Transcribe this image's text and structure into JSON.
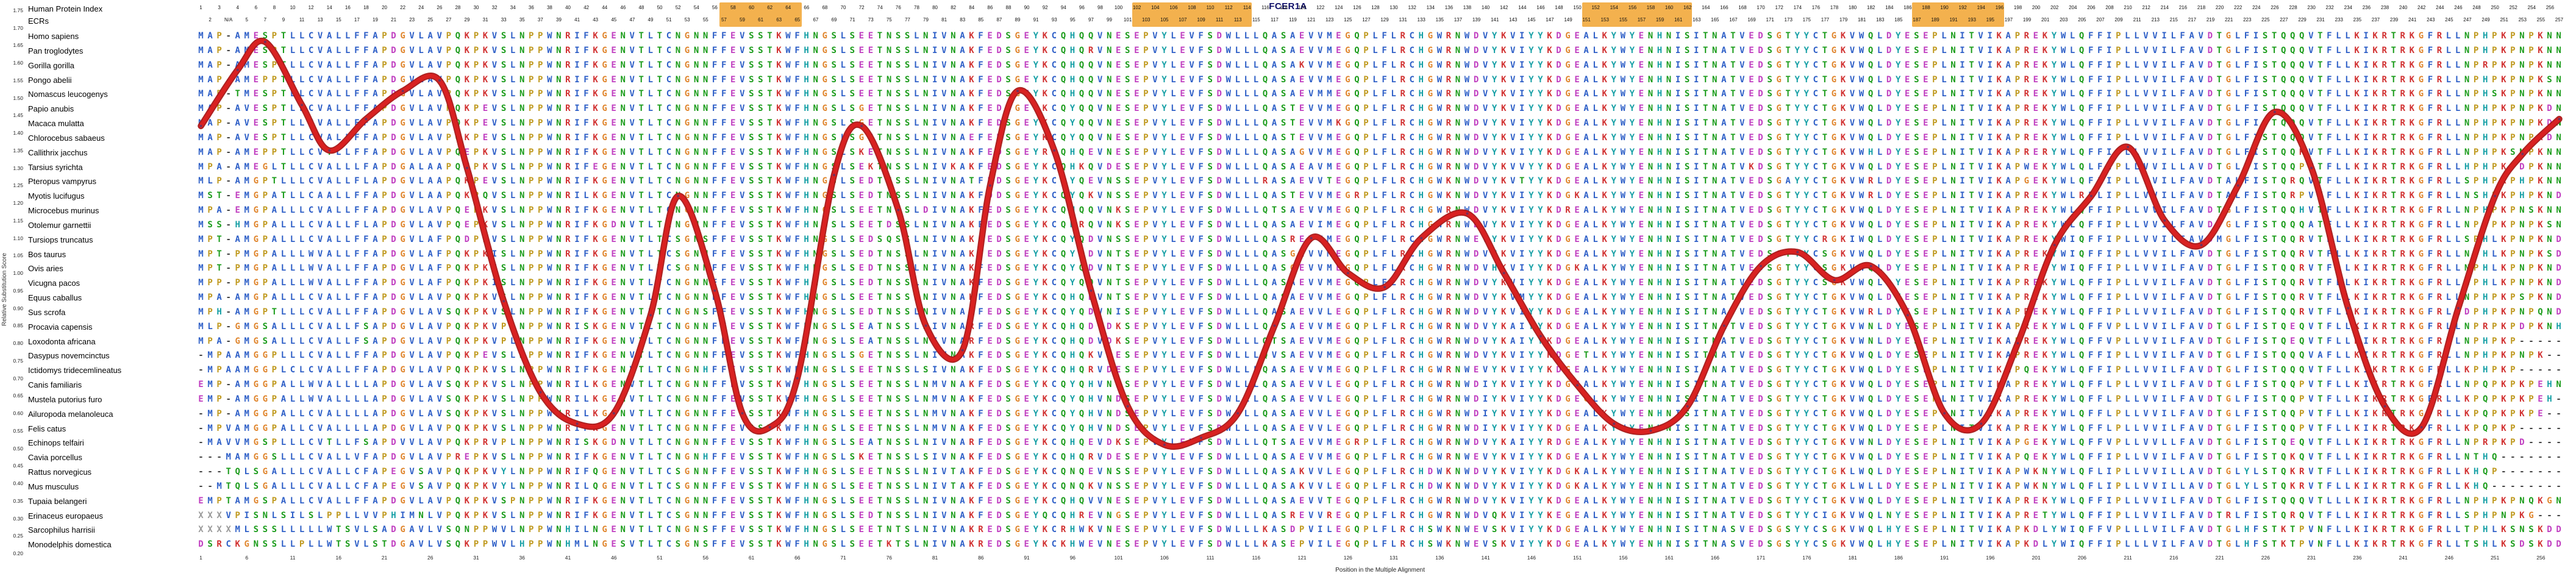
{
  "title": "FCER1A",
  "header": {
    "row1_label": "Human Protein Index",
    "row2_label": "ECRs",
    "row1_numbers": [
      1,
      3,
      4,
      6,
      8,
      10,
      12,
      14,
      16,
      18,
      20,
      22,
      24,
      26,
      28,
      30,
      32,
      34,
      36,
      38,
      40,
      42,
      44,
      46,
      48,
      50,
      52,
      54,
      56,
      58,
      60,
      62,
      64,
      66,
      68,
      70,
      72,
      74,
      76,
      78,
      80,
      82,
      84,
      86,
      88,
      90,
      92,
      94,
      96,
      98,
      100,
      102,
      104,
      106,
      108,
      110,
      112,
      114,
      116,
      118,
      120,
      122,
      124,
      126,
      128,
      130,
      132,
      134,
      136,
      138,
      140,
      142,
      144,
      146,
      148,
      150,
      152,
      154,
      156,
      158,
      160,
      162,
      164,
      166,
      168,
      170,
      172,
      174,
      176,
      178,
      180,
      182,
      184,
      186,
      188,
      190,
      192,
      194,
      196,
      198,
      200,
      202,
      204,
      206,
      208,
      210,
      212,
      214,
      216,
      218,
      220,
      222,
      224,
      226,
      228,
      230,
      232,
      234,
      236,
      238,
      240,
      242,
      244,
      246,
      248,
      250,
      252,
      254,
      256
    ],
    "row2_numbers": [
      2,
      "N/A",
      5,
      7,
      9,
      11,
      13,
      15,
      17,
      19,
      21,
      23,
      25,
      27,
      29,
      31,
      33,
      35,
      37,
      39,
      41,
      43,
      45,
      47,
      49,
      51,
      53,
      55,
      57,
      59,
      61,
      63,
      65,
      67,
      69,
      71,
      73,
      75,
      77,
      79,
      81,
      83,
      85,
      87,
      89,
      91,
      93,
      95,
      97,
      99,
      101,
      103,
      105,
      107,
      109,
      111,
      113,
      115,
      117,
      119,
      121,
      123,
      125,
      127,
      129,
      131,
      133,
      135,
      137,
      139,
      141,
      143,
      145,
      147,
      149,
      151,
      153,
      155,
      157,
      159,
      161,
      163,
      165,
      167,
      169,
      171,
      173,
      175,
      177,
      179,
      181,
      183,
      185,
      187,
      189,
      191,
      193,
      195,
      197,
      199,
      201,
      203,
      205,
      207,
      209,
      211,
      213,
      215,
      217,
      219,
      221,
      223,
      225,
      227,
      229,
      231,
      233,
      235,
      237,
      239,
      241,
      243,
      245,
      247,
      249,
      251,
      253,
      255,
      257
    ],
    "ecr_regions": [
      [
        58,
        66
      ],
      [
        103,
        115
      ],
      [
        152,
        163
      ],
      [
        188,
        197
      ]
    ],
    "ecr_highlight_color": "#f2a93b"
  },
  "y_axis": {
    "label": "Relative Substitution Score",
    "tick_labels": [
      "1.75",
      "1.70",
      "1.65",
      "1.60",
      "1.55",
      "1.50",
      "1.45",
      "1.40",
      "1.35",
      "1.30",
      "1.25",
      "1.20",
      "1.15",
      "1.10",
      "1.05",
      "1.00",
      "0.95",
      "0.90",
      "0.85",
      "0.80",
      "0.75",
      "0.70",
      "0.65",
      "0.60",
      "0.55",
      "0.50",
      "0.45",
      "0.40",
      "0.35",
      "0.30",
      "0.25",
      "0.20"
    ]
  },
  "x_axis": {
    "label": "Position in the Multiple Alignment",
    "tick_values": [
      1,
      6,
      11,
      16,
      21,
      26,
      31,
      36,
      41,
      46,
      51,
      56,
      61,
      66,
      71,
      76,
      81,
      86,
      91,
      96,
      101,
      106,
      111,
      116,
      121,
      126,
      131,
      136,
      141,
      146,
      151,
      156,
      161,
      166,
      171,
      176,
      181,
      186,
      191,
      196,
      201,
      206,
      211,
      216,
      221,
      226,
      231,
      236,
      241,
      246,
      251,
      256
    ]
  },
  "residue_colors": {
    "groups": [
      {
        "residues": "AVLIMFWC",
        "color": "#2e5fc7"
      },
      {
        "residues": "KR",
        "color": "#d13030"
      },
      {
        "residues": "DE",
        "color": "#c03ec0"
      },
      {
        "residues": "NQST",
        "color": "#1b9c1b"
      },
      {
        "residues": "G",
        "color": "#e0862e"
      },
      {
        "residues": "P",
        "color": "#c09a20"
      },
      {
        "residues": "HY",
        "color": "#17a0a6"
      },
      {
        "residues": "X",
        "color": "#999999"
      },
      {
        "residues": "-",
        "color": "#444444"
      }
    ]
  },
  "alignment": {
    "column_count": 258,
    "species": [
      {
        "name": "Homo sapiens",
        "seq": "MAP-AMESPTLLCVALLFFAPDGVLAVPQKPKVSLNPPWNRIFKGENVTLTCNGNNFFEVSSTKWFHNGSLSEETNSSLNIVNAKFEDSGEYKCQHQQVNESEPVYLEVFSDWLLLQASAEVVMEGQPLFLRCHGWRNWDVYKVIYYKDGEALKYWYENHNISITNATVEDSGTYYCTGKVWQLDYESEPLNITVIKAPREKYWLQFFIPLLVVILFAVDTGLFISTQQQVTFLLKIKRTRKGFRLLNPHPKPNPKNN"
      },
      {
        "name": "Pan troglodytes",
        "seq": "MAP-AMESPTLLCVALLFFAPDGVLAVPQKPKVSLNPPWNRIFKGENVTLTCNGNNFFEVSSTKWFHNGSLSEETNSSLNIVNAKFEDSGEYKCQHQRVNESEPVYLEVFSDWLLLQASAEVVMEGQPLFLRCHGWRNWDVYKVIYYKDGEALKYWYENHNISITNATVEDSGTYYCTGKVWQLDYESEPLNITVIKAPREKYWLQFFIPLLVVILFAVDTGLFISTQQQVTFLLKIKRTRKGFRLLNPHPKPNPKNN"
      },
      {
        "name": "Gorilla gorilla",
        "seq": "MAP-AMESPTLLCVALLFFAPDGVLAVPQKPKVSLNPPWNRIFKGENVTLTCNGNNFFEVSSTKWFHNGSLSEETNSSLNIVNAKFEDSGEYKCQHQQVNESEPVYLEVFSDWLLLQASAKVVMEGQPLFLRCHGWRNWDVYKVIYYKDGEALKYWYENHNISITNATVEDSGTYYCTGKVWQLDYESEPLNITVIKAPREKYWLQFFIPLLVVILFAVDTGLFISTQQQVTFLLKIKRTRKGFRLLNPRPKPNPKNN"
      },
      {
        "name": "Pongo abelii",
        "seq": "MAP-AMEPPTLLCVALLFFAPDGVLAVPQKPKVSLNPPWNRIFKGENVTLTCNGNNFFEVSSTKWFHNGSLSEETNSSLNIVNAKFEDSGEYKCQHQQVNESEPVYLEVFSDWLLLQASAEVVMEGQPLFLRCHGWRNWDVYKVIYYKDGEALKYWYENHNISITNATVEDSGTYYCTGKVWQLDYESEPLNITVIKAPREKYWLQFFIPLLVVILFAVDTGLFISTQQQVTFLLKIKRTRKGFRLLNPHPKPNPKSN"
      },
      {
        "name": "Nomascus leucogenys",
        "seq": "MAP-TMESPTLLCVALLFFAPDGVLAVPQKPKVSLNPPWNRIFKGENVTLTCNGNNFFEVSSTKWFHNGSLSEETNSSLNIVNAKFEDSGEYKCQHQQVNESEPVYLEVFSDWLLLQASAEVMMEGQPLFLRCHGWRNWDVYKVIYYKDGEALKYWYENHNISITNATVEDSGTYYCTGKVWQLDYESEPLNITVIKAPREKYWLQFFIPLLVVILFAVDTGLFISTQQQVTFLLKIKRTRKGFRLLNPHSKPNPKNN"
      },
      {
        "name": "Papio anubis",
        "seq": "MAP-AVESPTLLCVALLFFAPDGVLAVPQKPEVSLNPPWNRIFKGENVTLTCNGNNFFEVSSTKWFHNGSLSGETNSSLNIVNAKFEDSGEYKCQYQQVNESEPVYLEVFSDWLLLQASTEVVMEGQPLFLRCHGWRNWDVYKVIYYKDGEALKYWYENHNISITNATVEDSGTYYCTGKVWQLDYESEPLNITVIKAPREKYWLQFFIPLLVVILFAVDTGLFISTQQQVTFLLKIKRTRKGFRLLNPHPKPNPKDN"
      },
      {
        "name": "Macaca mulatta",
        "seq": "MAP-AVESPTLLCVALLFFAPDGVLAVPQKPEVSLNPPWNRIFKGENVTLTCNGNNFFEVSSTKWFHNGSLSGETNSSLNIVNAKFEDSGEYKCQYQQVNESEPVYLEVFSDWLLLQASTEVVMKGQPLFLRCHGWRNWDVYKVIYYKDGEALKYWYENHNISITNATVEDSGTYYCTGKVWQLDYESEPLNITVIKAPREKYWLQFFIPLLVVILFAVDTGLFISTQQQVTFLLKIKRTRKGFRLLNPHPKPNPKDN"
      },
      {
        "name": "Chlorocebus sabaeus",
        "seq": "MAP-AVESPTLLCVALLFFAPDGVLAVPQKPEVSLNPPWNRIFKGENVTLTCNGNNFFEVSSTKWFHNGSLSGETNSSLNIVNAEFEDSGEYKCQYQQVNESEPVYLEVFSDWLLLQASTEVVMEGQPLFLRCHGWRNWDVYKVIYYKDGEALKYWYENHNISITNATVEDSGTYYCTGKVWQLDYESEPLNITVIKAPREKYWLQFFIPLLVVILFAVDTGLFISTQQQVTFLLKIKRTRKGFRLLNPHPKPNPKDN"
      },
      {
        "name": "Callithrix jacchus",
        "seq": "MAP-AMEPPTLLCVTLLFFAPDGVLAVPQEPKVSLNPPWNRIFKGENVTLTCNGNNFFEVSSTKWFHNGSLSKETNSSLNIVNAKFEDSGEYRCQHQEVNESEPVYLEVFSDWLLLQASAGVVMEGQPLFLRCHGWRNWDVYKVIYYKDGEALKYWYENHNISITNATVEDSGTYYCTGKVWHLDYESEPLNITVIKAPRERYWLQFFIPLLVVILFAVDTGLFISTQQKVTFLLKIKRTRKGFRLLNPHPKSNPKNN"
      },
      {
        "name": "Tarsius syrichta",
        "seq": "MPA-AMEGLTLLCVALLLFAPDGALAAPQKPKVSLNPPWNRIFEGENVTLTCNGNNFFEVSSTKWFHNGSLSEKTNSSLNIVKAKFEDSGEYKCQHKQVDESEPVYLEVFSDWLLLQASAEAVMEGQPLFLRCHGWRNWDVYKVVYYKDGEALKYWYENHNISITNATVKDSGTYYCTGKVWQLDYESEPLNITVIKAPWEKYWLQLFIPLLVVILLAVDTGLFISTQQPVTFLLKIKRTRKGFRLLHPHPKPDPKNN"
      },
      {
        "name": "Pteropus vampyrus",
        "seq": "MLP-AMGPTLLLCVALLFLAPDGVLAAPQKPEVSLNPPWNRIFKGENVTLTCNGNNFFEVSSTKWFHNGSLSEDTNSSLNIVNATFEDSGEYKCQYQEVNSSEPVYLEVFSDWLLLRASAEVVTEGQPLFLRCHGWKNWDVYKVTYYKDGEALKYWYENHNISITNATVEDSGAYYCTGKVWRLDYESEPLNITVIKAPGEKYWLQFLIPLLVVILFAVDTALFISTQRQVTFLLKIKRTRKGFRLLSPHPKPHPKNN"
      },
      {
        "name": "Myotis lucifugus",
        "seq": "MST-EMGPATLLCAALLFFAPDGVLAAPQKPQVSLNPPWNRILKGENVTLTCNGNNFFEVSSTKWFHNGSLSEDTNSSLNIVNAKFDDSGEYKCQYQKVNSSEPVYLEVFSDWLLLQASTEVVMEGRPLFLRCHGWKNWDVYKVIYYKDGKALKYWYENHNISITNATVEDSGTYYCTGKVWRLDYESEPLNITVIKAPREKYWLRFLIPLLVVILFAVDTALFISTQRPVTFLLKIKRTRKGFRLLNSHPKPHPKND"
      },
      {
        "name": "Microcebus murinus",
        "seq": "MPA-EMGPALLLCVALLFFAPDGVLAVPQEPKVSLNPPWNRIFKGENVTLTCNGNNFFEVSSTKWFHNGSLSEETNSSLDIVNAKFEDSGEYKCQHQQVNKSEPVYLEVFSDWLLLQTSAEVVMEGQPLFLRCHGWRNWDVYKVIYYKDREALKYWYENHNISITNATVEDSGTYYCTGKVWQLDYESEPLNITVIKAPREKYWLQFFIPLLVVILFAVDTGLFISTQQHVTFLLKIKRTRKGFRLLNPHPKPNSKNN"
      },
      {
        "name": "Otolemur garnettii",
        "seq": "MSS-HMGPALLLCVALLFLAPDGVLAVPQEPKVSLNPPWNRIFKGDNVTLTCNGNNFFEVSSTKWFHNGSLSEETDSSLNIVNAKFEDSGEYKCQHRQVNKSEPVYLEVFSDWLLLQASAEVIMEGQPLFLRCHGWRNWDVYKVIYYKDGEALKYWYENHNISITNATVEDSGTYYCTGKVWQLDYESEPLNITVIKAPREKYWLQFFIPLLVVILFAVDTGLFISTQQQATFLLKIKRTRKGFRLLNPYPKPNPKSN"
      },
      {
        "name": "Tursiops truncatus",
        "seq": "MPT-AMGPALLLCVALLFFAPDGVLAFPQDPKVSLNPPWNRIFKGENVTLTCSGNSFFEVSSTKWFHNGSLSEDSQSSLNIVNAKFEDSGEYKCQYQDVNSSEPVYLEVFSDWLLLQASREVVMEGQPLFLRCHGWRNWEVYKVIYYKDGEALKYWYENHNISITNATVEDSGTYYCRGKIWQLDYESEPLNITVIKAPREKYWIQFFIPLLVVILFAVDMGLFISTQQRVTFLLKIKRTRKGFRLLSPHLKPNPKND"
      },
      {
        "name": "Bos taurus",
        "seq": "MPT-PMGPALLLWVALLFFAPDGVLAFPQKPKISLNPPWNRIFKGENVTLTCSGNNFFEVSSTKWFHNGSLSEDTNSSLNIVNAKFEDSGEYKCQYQDVNTSEPVYLEVFSDWLLLQASGEVVMEGQPLFLRCHGWRNWDVHKVIYYKDGEALKYWYENHNISITNATVEDSGTYYCSGKVWQLDYESEPLNITVIKAPREKYWIQFFIPLLVVILFAVDTGLFISTQQRVTFLLKIKRTRKGFRLLNPHLKPNPKSD"
      },
      {
        "name": "Ovis aries",
        "seq": "MPT-PMGPALLLWVALLFFAPDGVLAFPQKPKISLNPPWNRIFKGENVTLTCSGNNFFEVSSTKWFHNGSLSEDTNSSLNIVNAKFEDSGEYKCQYQDVNTSEPVYLEVFSDWLLLQASGEVVMEGQPLFLRCHGWRNWDVHKVIYYKDGKALKYWYENHNISITNATVEDSGTYYCSGKVWQLDYESEPLNITVIKAPREKYWIQFFIPLLVVILFAVDTGLFISTQQRVTFLLKIKRTRKGFRLLNPHLKPNPKND"
      },
      {
        "name": "Vicugna pacos",
        "seq": "MPP-PMGPALLLWVALLFFAPDGVLAFPQKPKISLNPPWNRIFKGENVTLTCNGNNFFEVSSTKWFHNGSLSEDTNSSLNIVNAKFEDSGEYKCQYQQVNTSEPVYLEVFSDWLLLQASAEVVMEGQPLFLRCHGWRNWDVYKVIYYKDGEALKYWYENHNISITNATVEDSGTYYCSGKVWQLDYESEPLNITVIKAPREKYWLQFFIPLLVVILFAVDTGLFISTQQRVTFLLKIKRTRKGFRLLNPHLKPNPKND"
      },
      {
        "name": "Equus caballus",
        "seq": "MPA-AMGPALLLCVALLFFAPDGVLAVPQKPKVSLNPPWNRIFKGENVTLTCNGNNFFEVSSTKWFHNGSLSEETNSSLNIVNAKFEDSGEYKCQHQDVNTSEPVYLEVFSDWLLLQASAEVVMEGQPLFLRCHGWRNWDVYKVMYYKDGEALKYWYENHNISITNATVEDSGTYYCTGKVWQLDYESEPLNITVIKAPREKYWLQFFIPLLVVILFAVDTGLFISTQQRVTFLLKIKRTRKGFRLLNPHPKPSPKND"
      },
      {
        "name": "Sus scrofa",
        "seq": "MPH-AMGPTLLLCVALLFFAPDGVLAVSQKPKVSLNPPWNRIFKGENVTLTCNGNSFFEVSSTKWFHNGSLSEDTNSSLNIVNAKFEDSGEYKCQYQDVNISEPVYLEVFSDWLLLQASAEVVLEGQPLFLRCHGWRNWDVYKVIYYKDGEALKYWYENHNISITNATVEDSGTYYCTGKVWRLDYESEPLNITVIKAPREKYWLQFFIPLLVVILFAVDTGLFISTQQRVTFLLKIKRTRKGFRLLDPHPKPNPQND"
      },
      {
        "name": "Procavia capensis",
        "seq": "MLP-GMGSALLLCVALLFSAPDGVLAVPQKPKVPLNPPWNRISKGENVTLTCNGNNFFEVSSTKWFHNGSLSEATNSSLNIVNARFEDSGEYKCQHQDVDKSEPVYLEVFSDWLLLQTSAEVVMEGQPLFLRCHGWRNWDVYKAIYYKDGEALKYWYENHNISITNATVEDSGTYYCTGKVWNLDYESEPLNITVIKAPREKYWLQFFVPLLVVILFAVDTGLFISTQEQVTFLLKIKRTRKGFRLLNPRPKPDPKNH"
      },
      {
        "name": "Loxodonta africana",
        "seq": "MPA-GMGSALLLCVALLFSAPDGVLAVPQKPKVPLNPPWNRIFKGENVTLTCNGNNFFEVSSTKWFHNGSLSEATNSSLNIVNARFEDSGEYKCQHQDVDKSEPVYLEVFSDWLLLQTSAEVVMEGQPLFLRCHGWRNWDVYKAIYYKDGEALKYWYENHNISITNATVEDSGTYYCTGKVWNLDYESEPLNITVIKAPREKYWLQFFVPLLVVILFAVDTGLFISTQEQVTFLLKIKRTRKGFRLLNPHPKP-----"
      },
      {
        "name": "Dasypus novemcinctus",
        "seq": "-MPAAMGGPLLLCVALLFFAPDGVLAVPQKPEVSLNPPWNRIFKGENVTLTCNGNNFFEVSSTKWFHNGSLSGETNSSLNIVNAKFEDSGEYKCQHQKVNESEPVYLEVFSDWLLLQVSAEVVMEGQPLFLRCHGWRNWDVYKVIYYKDGETLKYWYENHNISITNATVEDSGTYYCTGKVWQLDYESEPLNITVIKAPREKYWLQFFIPLLVVILFAVDTGLFISTQQQVAFLLKIKRTRKGFRLLNPHPKPNPK--"
      },
      {
        "name": "Ictidomys tridecemlineatus",
        "seq": "-MPAAMGGPLCLCVALLFFAPDGVLAVPQKPKVSLNPPWNRIFKGENVTLTCNGNHFFEVSSTKWFHNGSLSEETNSSLSIVNAKFEDSGEYKCQHQRVDESEPVYLEVFSDWLLLQASAEVVMEGQPLFLRCHGWRNWEVYKVIYYKDGEALKYWYENHNISITNATVEDSGTYYCTGKVWQLDYESEPLNITVIKAPQEKYWLQFFIPLLVVILFAVDTGLFISTQQQVTFLLKIKRTRKGFRLLKPHPKP-----"
      },
      {
        "name": "Canis familiaris",
        "seq": "EMP-AMGGPALLWVALLLLAPDGVLAVSQKPKVSLNPPWNRILKGENVTLTCNGNNFFEVSSTKWFHNGSLSEETNSSLNMVNAKFEDSGEYKCQYQHVNDSEPVYLEVFSDWLLLQASAEVVLEGQPLFLRCHGWRNWDIYKVIYYKDGEALKYWYENHNISITNATVEDSGTYYCTGKVWQLDYESEPLNITVIKAPREKYWLQFFLPLLVVILFAVDTGLFISTQQPVTFLLKIKRTRKGFRLLNPQPKPKPEHN"
      },
      {
        "name": "Mustela putorius furo",
        "seq": "EMP-AMGGPALLWVALLLLAPDGVLAVSQKPKVSLNPPWNRILKGENVTLTCNGNNFFEVSSTKWFHNGSLSEETNSSLNMVNAKFEDSGEYKCQYQHVNDSEPVYLEVFSDWLLLQASAEVVLEGQPLFLRCHGWRNWDIYKVIYYKDGEGLKYWYENHNISITNATVEDSGTYYCTGKVWQLDYESEPLNITVIKAPREKYWLQFFLPLLVVILFAVDTGLFISTQQPVTFLLKIKRTRKGFRLLKPQPKPKPEH-"
      },
      {
        "name": "Ailuropoda melanoleuca",
        "seq": "-MP-AMGGPALLCVALLLLAPDGVLAVSQKPKVSLNPPWNRILKGENVTLTCNGNNFFEVSSTKWFHNGSLSEETNSSLNMVNAKFEDSGEYKCQYQHVNDSEPVYLEVFSDWLLLQASAEVVLEGQPLFLRCHGWRNWDIYKVIYYKDGEALKYWYENHNISITNATVEDSGTYYCTGKVWQLDYESEPLNITVIKAPREKYWLQFFLPLLVVILFAVDTGLFISTQQPVTFLLKIKRTRKGFRLLKPQPKPKPE--"
      },
      {
        "name": "Felis catus",
        "seq": "-MPVAMGGPALLCVALLLLAPDGVLAVPQKPKVSLNPPWNRIFKGENVTLTCNGNNFFEVSSTKWFHNGSLSEETNSSLNMVNAKFEDSGEYKCQYQHVNDSEPVYLEVFSDWLLLQASAEVVLEGQPLFLRCHGWRNWDIYKVIYYKDGEALKYWYENHNISITNATVEDSGTYYCTGKVWQLDYESEPLNITVIKAPREKYWLQFFLPLLVVILFAVDTGLFISTQQPVTFLLKIKRTRKGFRLLKPQPKP-----"
      },
      {
        "name": "Echinops telfairi",
        "seq": "-MAVVMGSPLLLCVTLLFSAPDVVLAVPQKPRVPLNPPWNRISKGDNVTLTCNGNNFFEVSSTKWFHNGSLSEATNSSLNIVNARFEDSGEYKCQHQEVDKSEPVYLEVFSDWLLLQTSAEVVMEGRPLFLRCHGWRNWDVYKAIYYRDGEALKYWYENHNISITNATVEDSGTYYCTGKVWNLDYESEPLNITVIKAPGEKYWLQFFVPLLVVLLFAVDTGLFISTQEQVTFLLKIKRTRKGFRLLNPRPKPD----"
      },
      {
        "name": "Cavia porcellus",
        "seq": "---MAMGGSLLLCVALLVFAPDGVLAVPREPKVSLNPPWNRIFKGENVTLTCNGNHFFEVSSTKWFHNGSLSKETNSSLSIVNAKFEDSGEYKCQHQRVDESEPVYLEVFSDWLLLQASAEVVMEGQPLFLRCHGWRNWEVYKVIYYKDGEALKYWYENHNISITNATVEDSGTYYCTGKVWQLDYESEPLNITVIKAPQEKYWLQFFIPLLVVILFAVDTGLFISTQKQVTFLLKIKRTRKGFRLLNTHQ-------"
      },
      {
        "name": "Rattus norvegicus",
        "seq": "---TQLSGALLLCVALLCFAPEGVSAVPQKPKVYLNPPWNRIFQGENVTLTCSGNNFFEVSSTKWFHNGSLSEETNSSLNIVTAKFEDSGEYKCQNQEVNSSEPVYLEVFSDWLLLQASAKVVLEGQPLFLRCHDWKNWDVYKVIYYKDGKALKYWYENHNISITNATVEDSGTYYCTGKLWQLDYESEPLNITVIKAPWKNYWLQFLIPLLVVILLAVDTGLYLSTQKRVTFLLKIKRTRKGFRLLKHQP-------"
      },
      {
        "name": "Mus musculus",
        "seq": "--MTQLSGALLLCVALLCFAPEGVSAVPQKPKVYLNPPWNRILQGENVTLTCSGNNFFEVSSTKWFHNGSLSEETNSSLNIVTAKFEDSGEYKCQNQKVNSSEPVYLEVFSDWLLLQASAKVVLEGQPLFLRCHDWKNWDVYKVIYYKDGKALKYWYENHNISITNATVEDSGTYYCTGKLWLLDYESEPLNITVIKAPWKNYWLQFLIPLLVVILLAVDTGLYLSTQKRVTFLLKIKRTRKGFRLLKHQ--------"
      },
      {
        "name": "Tupaia belangeri",
        "seq": "EMPTAMGSPALLCVALLFFAPDGVLAVPQKPKVSPNPPWNRIFKGENVTLTCNGNNFFEVSSTKWFHNGSLSEETNSSLNIVNAKFEDSGEYKCQHQVVNESEPVYLEVFSDWLLLQASAEVVTEGQPLFLRCHGWRNWDVYKVIYYKDGEALKYWYENHNISITNATVEDSGTYYCTGKVWQLDYESEPLNITVIKAPREKYWLQFFIPLLVVILFAVDTGLFISTQQQVTLLLKIKRTRKGFRLLNPHPKPNQKGN"
      },
      {
        "name": "Erinaceus europaeus",
        "seq": "XXXVPISNLSILSLPPLLVVPHIMNLVPQKPKVSLNPPWNRIFKGENVTLTCSGNNFFEVSSTKWFHNGSLSEDTNSSLNIVNAKFEDSGEYQCQHREVNGSEPVYLEVFSDWLLLQASREVVREGQPLFLRCHGWRNWDVQKVIYYKEGEALKYWYENHNISITNATVEDSGTYYCIGKVWQLNYESEPLNITVIKAPRETYWLQFFIPLLVVILFAVDTRLFISTQRQVTFLLKIKRTRKGFRLLSPHPNPKG---"
      },
      {
        "name": "Sarcophilus harrisii",
        "seq": "XXXXMLSSSLLLLLWTSVLSADGAVLVSQNPPWVLNPPWNHILNGENVTLTCNGNSFFEVSSTKWFHNGSLSEETNTSLNIVNAKREDSGEYKCRHWKVNESEPVYLEVFSDWLLLKASDPVILEGQPLFLRCHSWKNWEVSKVIYYKDGEALKYWYENHNISITNASVEDSGSYYCSGKVWQLHYESEPLNITVIKAPKDLYWIQFFVPLLLVILFAVDTGLHFSTKTPVNFLLKIKRTRKGFRLLTPHLKSNSKDD"
      },
      {
        "name": "Monodelphis domestica",
        "seq": "DSRCKGNSSLLPLLWTSVLSTDGAVLVSQKPPWVLHPPWNHMLNGESVTLTCSGNSFFEVSSTKWFHNGSLSEETKTSLNIVNAKREDSGEYKCKHWEVNESEPVYLEVFSDWLLLKASEPVILEGQPLFLRCHSWKNWEVSKVIYYKDGEALKYWYENHNISITNASVEDSGSYYCSGKVWQLHYESEPLNITVIKAPKDLYWIQFFIPLLLVILFAVDTGLHFSTKTPVNFLLKIKRTRKGFRLLTSHLKSDSKDD"
      }
    ]
  },
  "chart_data": {
    "type": "line",
    "title": "FCER1A",
    "xlabel": "Position in the Multiple Alignment",
    "ylabel": "Relative Substitution Score",
    "xlim": [
      1,
      258
    ],
    "ylim": [
      0.2,
      1.75
    ],
    "grid": false,
    "legend": "none",
    "line_color": "#d92121",
    "line_edge_color": "#a81616",
    "marker_color": "#1c3f8f",
    "series": [
      {
        "name": "Relative Substitution Score",
        "x": [
          1,
          5,
          8,
          12,
          15,
          19,
          23,
          27,
          30,
          34,
          38,
          42,
          46,
          50,
          53,
          57,
          60,
          63,
          66,
          70,
          73,
          77,
          80,
          84,
          87,
          90,
          94,
          98,
          102,
          106,
          110,
          114,
          118,
          122,
          126,
          130,
          134,
          139,
          143,
          147,
          151,
          155,
          159,
          163,
          167,
          171,
          175,
          179,
          183,
          187,
          191,
          195,
          199,
          203,
          207,
          211,
          215,
          219,
          223,
          227,
          231,
          235,
          239,
          243,
          247,
          251,
          254,
          258
        ],
        "y": [
          1.42,
          1.58,
          1.66,
          1.48,
          1.35,
          1.44,
          1.52,
          1.55,
          1.3,
          0.92,
          0.66,
          0.57,
          0.6,
          0.88,
          1.22,
          0.95,
          0.6,
          0.56,
          0.7,
          1.28,
          1.42,
          1.18,
          0.85,
          0.78,
          1.25,
          1.52,
          1.35,
          0.95,
          0.62,
          0.51,
          0.53,
          0.6,
          0.85,
          1.1,
          1.0,
          0.96,
          1.1,
          1.17,
          1.0,
          0.82,
          0.68,
          0.57,
          0.55,
          0.62,
          0.85,
          1.02,
          1.06,
          0.98,
          1.02,
          0.88,
          0.6,
          0.57,
          0.8,
          1.08,
          1.22,
          1.36,
          1.15,
          1.08,
          1.25,
          1.46,
          1.3,
          0.9,
          0.62,
          0.56,
          0.9,
          1.22,
          1.34,
          1.44
        ]
      }
    ]
  }
}
